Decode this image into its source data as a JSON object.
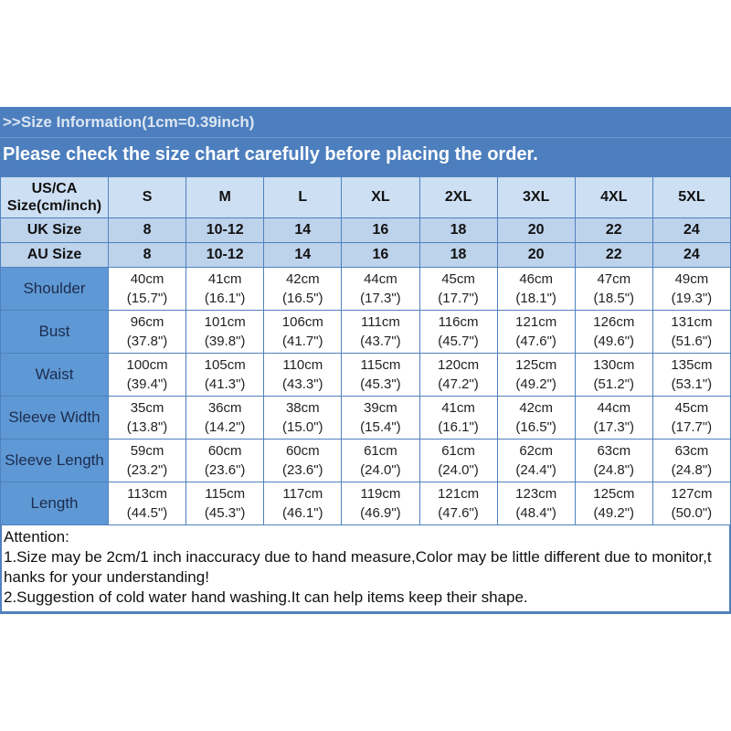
{
  "header": {
    "size_info": ">>Size Information(1cm=0.39inch)",
    "notice": "Please check the size chart carefully before placing the order."
  },
  "table": {
    "corner_line1": "US/CA",
    "corner_line2": "Size(cm/inch)",
    "columns": [
      "S",
      "M",
      "L",
      "XL",
      "2XL",
      "3XL",
      "4XL",
      "5XL"
    ],
    "uk_row": {
      "label": "UK Size",
      "values": [
        "8",
        "10-12",
        "14",
        "16",
        "18",
        "20",
        "22",
        "24"
      ]
    },
    "au_row": {
      "label": "AU Size",
      "values": [
        "8",
        "10-12",
        "14",
        "16",
        "18",
        "20",
        "22",
        "24"
      ]
    },
    "measurements": [
      {
        "label": "Shoulder",
        "cm": [
          "40cm",
          "41cm",
          "42cm",
          "44cm",
          "45cm",
          "46cm",
          "47cm",
          "49cm"
        ],
        "inch": [
          "(15.7\")",
          "(16.1\")",
          "(16.5\")",
          "(17.3\")",
          "(17.7\")",
          "(18.1\")",
          "(18.5\")",
          "(19.3\")"
        ]
      },
      {
        "label": "Bust",
        "cm": [
          "96cm",
          "101cm",
          "106cm",
          "111cm",
          "116cm",
          "121cm",
          "126cm",
          "131cm"
        ],
        "inch": [
          "(37.8\")",
          "(39.8\")",
          "(41.7\")",
          "(43.7\")",
          "(45.7\")",
          "(47.6\")",
          "(49.6\")",
          "(51.6\")"
        ]
      },
      {
        "label": "Waist",
        "cm": [
          "100cm",
          "105cm",
          "110cm",
          "115cm",
          "120cm",
          "125cm",
          "130cm",
          "135cm"
        ],
        "inch": [
          "(39.4\")",
          "(41.3\")",
          "(43.3\")",
          "(45.3\")",
          "(47.2\")",
          "(49.2\")",
          "(51.2\")",
          "(53.1\")"
        ]
      },
      {
        "label": "Sleeve Width",
        "cm": [
          "35cm",
          "36cm",
          "38cm",
          "39cm",
          "41cm",
          "42cm",
          "44cm",
          "45cm"
        ],
        "inch": [
          "(13.8\")",
          "(14.2\")",
          "(15.0\")",
          "(15.4\")",
          "(16.1\")",
          "(16.5\")",
          "(17.3\")",
          "(17.7\")"
        ]
      },
      {
        "label": "Sleeve Length",
        "cm": [
          "59cm",
          "60cm",
          "60cm",
          "61cm",
          "61cm",
          "62cm",
          "63cm",
          "63cm"
        ],
        "inch": [
          "(23.2\")",
          "(23.6\")",
          "(23.6\")",
          "(24.0\")",
          "(24.0\")",
          "(24.4\")",
          "(24.8\")",
          "(24.8\")"
        ]
      },
      {
        "label": "Length",
        "cm": [
          "113cm",
          "115cm",
          "117cm",
          "119cm",
          "121cm",
          "123cm",
          "125cm",
          "127cm"
        ],
        "inch": [
          "(44.5\")",
          "(45.3\")",
          "(46.1\")",
          "(46.9\")",
          "(47.6\")",
          "(48.4\")",
          "(49.2\")",
          "(50.0\")"
        ]
      }
    ]
  },
  "attention": {
    "title": "Attention:",
    "lines": [
      "1.Size may be 2cm/1 inch inaccuracy due to hand measure,Color may be little different due to monitor,t",
      "hanks for your understanding!",
      "2.Suggestion of cold water hand washing.It can help items keep their shape."
    ]
  },
  "colors": {
    "band_blue": "#4d7fbe",
    "border_blue": "#4f81bd",
    "header_cell_bg": "#cddff2",
    "uk_au_row_bg": "#bdd2eb",
    "label_column_bg": "#5f99d5",
    "data_cell_bg": "#ffffff"
  }
}
